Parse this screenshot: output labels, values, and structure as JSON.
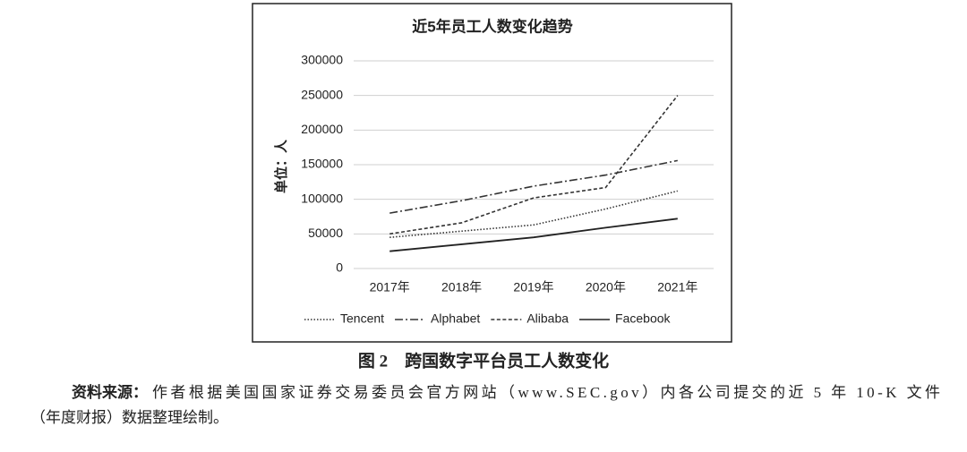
{
  "chart_data": {
    "type": "line",
    "title": "近5年员工人数变化趋势",
    "y_label": "单位：人",
    "categories": [
      "2017年",
      "2018年",
      "2019年",
      "2020年",
      "2021年"
    ],
    "series": [
      {
        "name": "Tencent",
        "color": "#333333",
        "line_style": "dotted",
        "values": [
          45000,
          54000,
          63000,
          86000,
          112000
        ]
      },
      {
        "name": "Alphabet",
        "color": "#333333",
        "line_style": "dashdot",
        "values": [
          80000,
          98000,
          119000,
          135000,
          156000
        ]
      },
      {
        "name": "Alibaba",
        "color": "#333333",
        "line_style": "dashed",
        "values": [
          50000,
          66000,
          102000,
          117000,
          250000
        ]
      },
      {
        "name": "Facebook",
        "color": "#222222",
        "line_style": "solid",
        "values": [
          25000,
          35000,
          45000,
          59000,
          72000
        ]
      }
    ],
    "ylim": [
      0,
      300000
    ],
    "yticks": [
      0,
      50000,
      100000,
      150000,
      200000,
      250000,
      300000
    ],
    "grid": true,
    "legend": "bottom"
  },
  "figure": {
    "caption": "图 2　跨国数字平台员工人数变化"
  },
  "source": {
    "label": "资料来源：",
    "line1": "作者根据美国国家证券交易委员会官方网站（www.SEC.gov）内各公司提交的近 5 年 10-K 文件",
    "line2": "（年度财报）数据整理绘制。"
  }
}
